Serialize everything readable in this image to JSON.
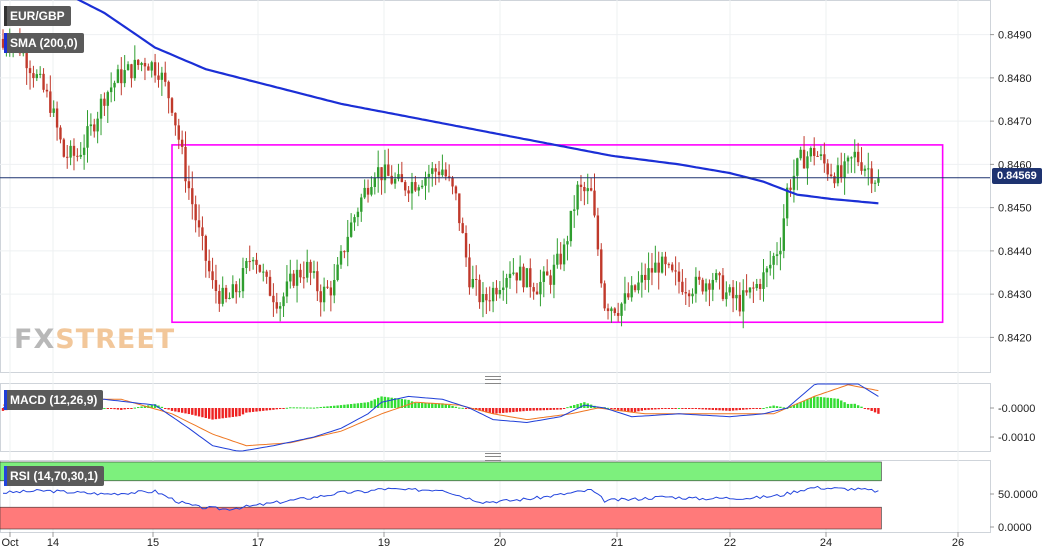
{
  "symbol_label": "EUR/GBP",
  "sma_label": "SMA (200,0)",
  "macd_label": "MACD (12,26,9)",
  "rsi_label": "RSI (14,70,30,1)",
  "last_price": "0.84569",
  "logo": {
    "part1": "FX",
    "part2": "STREET"
  },
  "colors": {
    "up": "#2f9e2f",
    "down": "#c0392b",
    "sma": "#1b2fd6",
    "range_box": "#ff00ff",
    "macd_line": "#1f3fd8",
    "signal_line": "#ee7722",
    "hist_up": "#33dd33",
    "hist_down": "#ee2222",
    "rsi_line": "#2244dd",
    "rsi_overbought": "#7df07d",
    "rsi_oversold": "#ff7a7a",
    "price_tag": "#1e3370"
  },
  "chart_data": [
    {
      "type": "candlestick",
      "xlabels": [
        "Oct",
        "14",
        "15",
        "17",
        "19",
        "20",
        "21",
        "22",
        "24",
        "26"
      ],
      "yticks": [
        "0.8420",
        "0.8430",
        "0.8440",
        "0.8450",
        "0.8460",
        "0.8470",
        "0.8480",
        "0.8490"
      ],
      "ylim": [
        0.8412,
        0.8498
      ],
      "series": [
        {
          "name": "EUR/GBP",
          "anchors": [
            [
              0,
              0.8487
            ],
            [
              2,
              0.849
            ],
            [
              6,
              0.8486
            ],
            [
              10,
              0.848
            ],
            [
              14,
              0.8474
            ],
            [
              18,
              0.8462
            ],
            [
              22,
              0.8462
            ],
            [
              26,
              0.8468
            ],
            [
              30,
              0.8476
            ],
            [
              34,
              0.848
            ],
            [
              38,
              0.8482
            ],
            [
              42,
              0.8484
            ],
            [
              46,
              0.8482
            ],
            [
              50,
              0.8474
            ],
            [
              54,
              0.8458
            ],
            [
              58,
              0.8444
            ],
            [
              62,
              0.8432
            ],
            [
              66,
              0.8428
            ],
            [
              70,
              0.8432
            ],
            [
              74,
              0.844
            ],
            [
              78,
              0.8432
            ],
            [
              82,
              0.8428
            ],
            [
              86,
              0.8434
            ],
            [
              90,
              0.8436
            ],
            [
              94,
              0.843
            ],
            [
              98,
              0.8432
            ],
            [
              102,
              0.8444
            ],
            [
              106,
              0.8452
            ],
            [
              110,
              0.8459
            ],
            [
              114,
              0.8457
            ],
            [
              118,
              0.8455
            ],
            [
              122,
              0.8456
            ],
            [
              126,
              0.8458
            ],
            [
              130,
              0.8459
            ],
            [
              134,
              0.8452
            ],
            [
              138,
              0.8434
            ],
            [
              142,
              0.8428
            ],
            [
              146,
              0.8432
            ],
            [
              150,
              0.8436
            ],
            [
              154,
              0.8434
            ],
            [
              158,
              0.8432
            ],
            [
              162,
              0.8434
            ],
            [
              166,
              0.844
            ],
            [
              170,
              0.8454
            ],
            [
              174,
              0.8453
            ],
            [
              178,
              0.8428
            ],
            [
              182,
              0.8427
            ],
            [
              186,
              0.843
            ],
            [
              190,
              0.8434
            ],
            [
              194,
              0.8437
            ],
            [
              198,
              0.8434
            ],
            [
              202,
              0.8432
            ],
            [
              206,
              0.8432
            ],
            [
              210,
              0.8434
            ],
            [
              214,
              0.843
            ],
            [
              218,
              0.8428
            ],
            [
              222,
              0.8431
            ],
            [
              226,
              0.8435
            ],
            [
              230,
              0.8442
            ],
            [
              232,
              0.8454
            ],
            [
              236,
              0.8461
            ],
            [
              240,
              0.8463
            ],
            [
              244,
              0.8459
            ],
            [
              248,
              0.8457
            ],
            [
              252,
              0.8462
            ],
            [
              256,
              0.8459
            ],
            [
              259,
              0.8456
            ]
          ]
        },
        {
          "name": "SMA (200,0)",
          "anchors": [
            [
              0,
              0.8504
            ],
            [
              15,
              0.8501
            ],
            [
              30,
              0.8495
            ],
            [
              45,
              0.8487
            ],
            [
              60,
              0.8482
            ],
            [
              80,
              0.8478
            ],
            [
              100,
              0.8474
            ],
            [
              120,
              0.8471
            ],
            [
              140,
              0.8468
            ],
            [
              160,
              0.8465
            ],
            [
              180,
              0.8462
            ],
            [
              200,
              0.846
            ],
            [
              215,
              0.8458
            ],
            [
              225,
              0.8456
            ],
            [
              235,
              0.8453
            ],
            [
              245,
              0.8452
            ],
            [
              259,
              0.8451
            ]
          ]
        }
      ],
      "annotations": [
        {
          "type": "range_box",
          "from_bar": 50,
          "to_bar": 278,
          "y_top": 0.84645,
          "y_bottom": 0.84235
        }
      ],
      "last_value": 0.84569
    },
    {
      "type": "line",
      "name": "MACD (12,26,9)",
      "yticks": [
        "-0.0000",
        "-0.0010"
      ],
      "series": [
        {
          "name": "MACD",
          "anchors": [
            [
              0,
              0.0
            ],
            [
              10,
              0.0004
            ],
            [
              30,
              0.0003
            ],
            [
              45,
              0.0001
            ],
            [
              55,
              -0.0007
            ],
            [
              62,
              -0.0013
            ],
            [
              70,
              -0.0015
            ],
            [
              80,
              -0.0013
            ],
            [
              92,
              -0.001
            ],
            [
              100,
              -0.0007
            ],
            [
              108,
              -0.0002
            ],
            [
              112,
              0.0002
            ],
            [
              120,
              0.0004
            ],
            [
              130,
              0.0003
            ],
            [
              138,
              0.0
            ],
            [
              145,
              -0.0004
            ],
            [
              155,
              -0.0005
            ],
            [
              165,
              -0.0003
            ],
            [
              172,
              0.0001
            ],
            [
              178,
              0.0
            ],
            [
              186,
              -0.0003
            ],
            [
              200,
              -0.0002
            ],
            [
              215,
              -0.0003
            ],
            [
              225,
              -0.0002
            ],
            [
              232,
              0.0
            ],
            [
              240,
              0.0008
            ],
            [
              247,
              0.001
            ],
            [
              252,
              0.0009
            ],
            [
              259,
              0.0004
            ]
          ]
        },
        {
          "name": "Signal",
          "anchors": [
            [
              0,
              0.0001
            ],
            [
              15,
              0.0003
            ],
            [
              35,
              0.0003
            ],
            [
              50,
              -0.0002
            ],
            [
              62,
              -0.0009
            ],
            [
              72,
              -0.0013
            ],
            [
              85,
              -0.0012
            ],
            [
              100,
              -0.0008
            ],
            [
              112,
              -0.0002
            ],
            [
              122,
              0.0002
            ],
            [
              135,
              0.0001
            ],
            [
              145,
              -0.0002
            ],
            [
              155,
              -0.0004
            ],
            [
              168,
              -0.0002
            ],
            [
              176,
              0.0
            ],
            [
              190,
              -0.0002
            ],
            [
              210,
              -0.0002
            ],
            [
              228,
              -0.0002
            ],
            [
              240,
              0.0004
            ],
            [
              250,
              0.0008
            ],
            [
              259,
              0.0006
            ]
          ]
        }
      ]
    },
    {
      "type": "line",
      "name": "RSI (14,70,30,1)",
      "yticks": [
        "50.0000",
        "0.0000"
      ],
      "levels": [
        70,
        30
      ],
      "series": [
        {
          "name": "RSI",
          "anchors": [
            [
              0,
              52
            ],
            [
              12,
              55
            ],
            [
              30,
              50
            ],
            [
              45,
              54
            ],
            [
              52,
              38
            ],
            [
              58,
              30
            ],
            [
              66,
              27
            ],
            [
              74,
              32
            ],
            [
              82,
              38
            ],
            [
              92,
              45
            ],
            [
              100,
              52
            ],
            [
              108,
              54
            ],
            [
              112,
              58
            ],
            [
              120,
              56
            ],
            [
              130,
              57
            ],
            [
              136,
              46
            ],
            [
              142,
              38
            ],
            [
              150,
              40
            ],
            [
              158,
              44
            ],
            [
              166,
              50
            ],
            [
              174,
              56
            ],
            [
              178,
              40
            ],
            [
              186,
              42
            ],
            [
              196,
              46
            ],
            [
              206,
              43
            ],
            [
              214,
              44
            ],
            [
              222,
              44
            ],
            [
              230,
              48
            ],
            [
              236,
              56
            ],
            [
              240,
              60
            ],
            [
              248,
              58
            ],
            [
              254,
              57
            ],
            [
              259,
              54
            ]
          ]
        }
      ]
    }
  ]
}
